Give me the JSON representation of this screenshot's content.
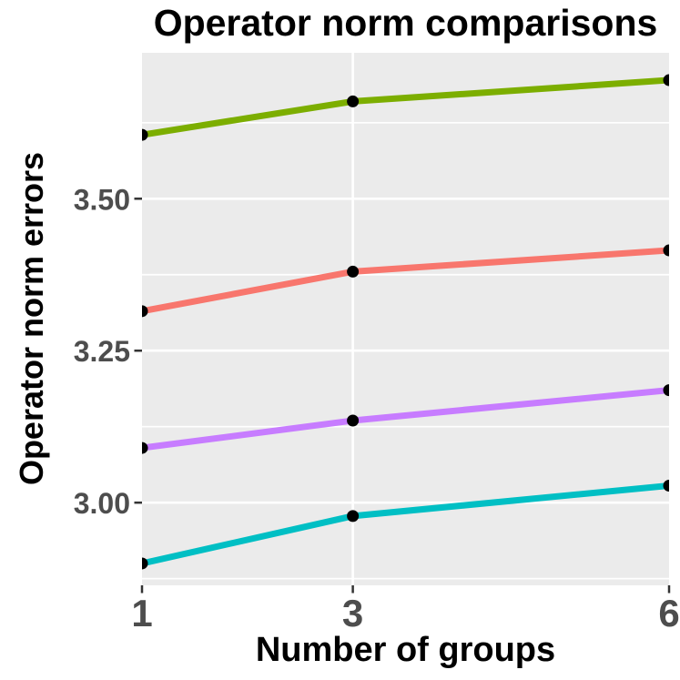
{
  "chart_data": {
    "type": "line",
    "title": "Operator norm comparisons",
    "xlabel": "Number of groups",
    "ylabel": "Operator norm errors",
    "x": [
      1,
      3,
      6
    ],
    "xlim": [
      1,
      6
    ],
    "ylim": [
      2.864,
      3.74
    ],
    "x_breaks": [
      1,
      3,
      6
    ],
    "x_tick_labels": [
      "1",
      "3",
      "6"
    ],
    "y_breaks": [
      3.5,
      3.25,
      3.0
    ],
    "y_tick_labels": [
      "3.50",
      "3.25",
      "3.00"
    ],
    "y_minor_breaks": [
      3.625,
      3.375,
      3.125,
      2.875
    ],
    "grid": true,
    "legend_position": "none",
    "series": [
      {
        "name": "green",
        "color": "#7CAE00",
        "values": [
          3.605,
          3.66,
          3.695
        ]
      },
      {
        "name": "red",
        "color": "#F8766D",
        "values": [
          3.315,
          3.38,
          3.415
        ]
      },
      {
        "name": "purple",
        "color": "#C77CFF",
        "values": [
          3.09,
          3.135,
          3.185
        ]
      },
      {
        "name": "cyan",
        "color": "#00BFC4",
        "values": [
          2.9,
          2.978,
          3.028
        ]
      }
    ],
    "marker": {
      "shape": "circle",
      "color": "#000000"
    },
    "colors": {
      "page_background": "#FFFFFF",
      "panel_background": "#EBEBEB",
      "gridline": "#FFFFFF",
      "tick": "#333333",
      "tick_label": "#4D4D4D",
      "title_text": "#000000"
    }
  }
}
